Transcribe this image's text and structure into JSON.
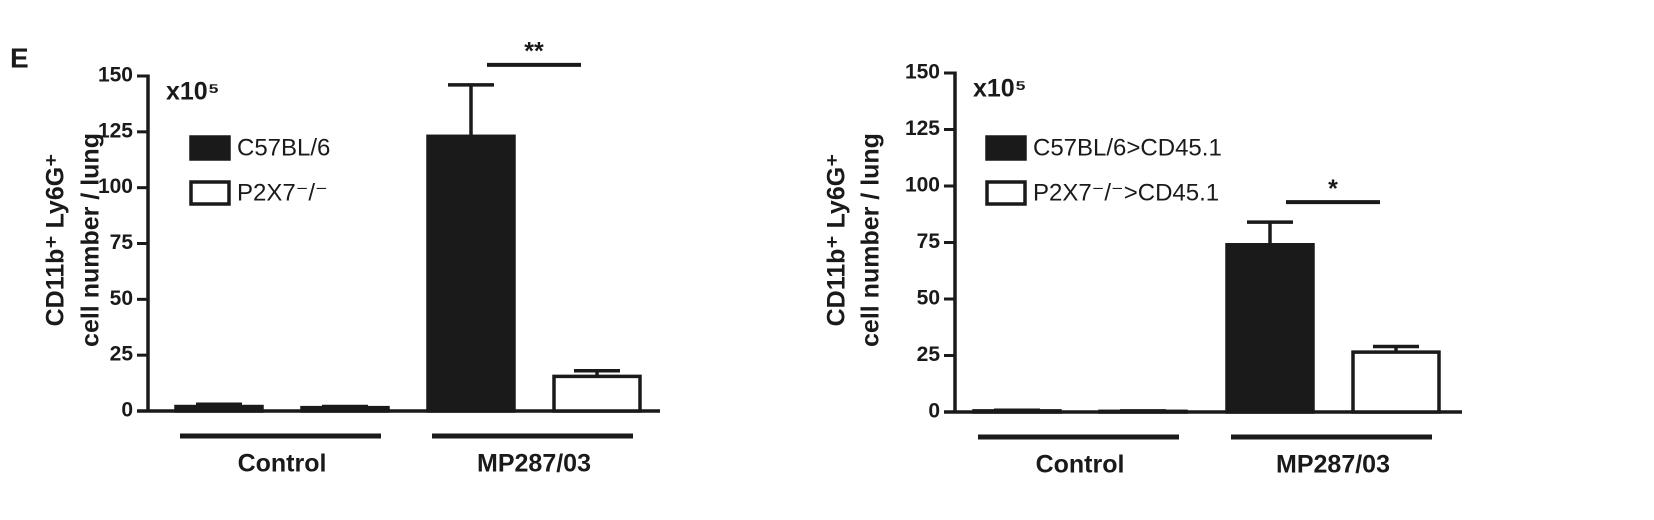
{
  "panel_label": "E",
  "chart_data": [
    {
      "type": "bar",
      "ylabel": [
        "CD11b⁺ Ly6G⁺",
        "cell number / lung"
      ],
      "axis_multiplier": "x10⁵",
      "categories": [
        "Control",
        "MP287/03"
      ],
      "series": [
        {
          "name": "C57BL/6",
          "color": "#1a1a1a",
          "values": [
            2,
            123
          ],
          "errors": [
            1,
            23
          ]
        },
        {
          "name": "P2X7⁻/⁻",
          "color": "#ffffff",
          "values": [
            1.5,
            15.5
          ],
          "errors": [
            0.5,
            2.5
          ]
        }
      ],
      "ylim": [
        0,
        150
      ],
      "yticks": [
        0,
        25,
        50,
        75,
        100,
        125,
        150
      ],
      "annotations": [
        {
          "text": "**",
          "category": 1
        }
      ]
    },
    {
      "type": "bar",
      "ylabel": [
        "CD11b⁺ Ly6G⁺",
        "cell number / lung"
      ],
      "axis_multiplier": "x10⁵",
      "categories": [
        "Control",
        "MP287/03"
      ],
      "series": [
        {
          "name": "C57BL/6>CD45.1",
          "color": "#1a1a1a",
          "values": [
            0.5,
            74
          ],
          "errors": [
            0.3,
            10
          ]
        },
        {
          "name": "P2X7⁻/⁻>CD45.1",
          "color": "#ffffff",
          "values": [
            0.3,
            26.5
          ],
          "errors": [
            0.2,
            2.5
          ]
        }
      ],
      "ylim": [
        0,
        150
      ],
      "yticks": [
        0,
        25,
        50,
        75,
        100,
        125,
        150
      ],
      "annotations": [
        {
          "text": "*",
          "category": 1
        }
      ]
    }
  ]
}
